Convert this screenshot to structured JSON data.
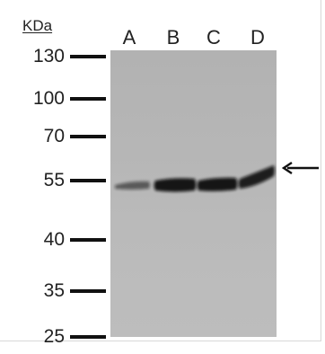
{
  "blot": {
    "unit_label": "KDa",
    "markers": [
      "130",
      "100",
      "70",
      "55",
      "40",
      "35",
      "25"
    ],
    "lanes": [
      "A",
      "B",
      "C",
      "D"
    ],
    "band_intensity": {
      "A": 0.55,
      "B": 0.95,
      "C": 0.95,
      "D": 0.9
    },
    "band_color": "#0d0d0d",
    "membrane_color": "#b8b8b8",
    "arrow_icon": "arrow-left-icon"
  }
}
